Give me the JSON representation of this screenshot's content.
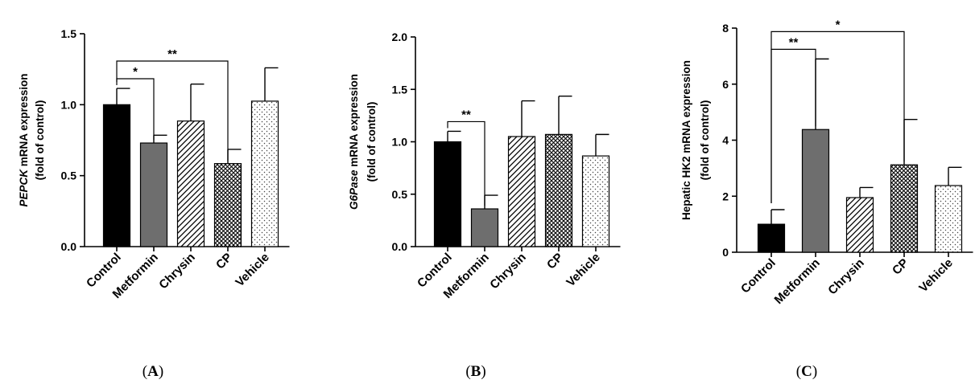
{
  "chart_data": [
    {
      "type": "bar",
      "panel_label": "(A)",
      "ylabel_parts": [
        {
          "text": "PEPCK",
          "italic": true
        },
        {
          "text": " mRNA expression",
          "italic": false
        }
      ],
      "ylabel_line2": "(fold of control)",
      "categories": [
        "Control",
        "Metformin",
        "Chrysin",
        "CP",
        "Vehicle"
      ],
      "values": [
        1.0,
        0.73,
        0.885,
        0.585,
        1.025
      ],
      "errors": [
        0.115,
        0.055,
        0.26,
        0.1,
        0.235
      ],
      "patterns": [
        "solid-black",
        "solid-gray",
        "diagonal",
        "crosshatch",
        "dots"
      ],
      "ylim": [
        0,
        1.5
      ],
      "yticks": [
        "0.0",
        "0.5",
        "1.0",
        "1.5"
      ],
      "significance": [
        {
          "from": 0,
          "to": 1,
          "label": "*"
        },
        {
          "from": 0,
          "to": 3,
          "label": "**"
        }
      ]
    },
    {
      "type": "bar",
      "panel_label": "(B)",
      "ylabel_parts": [
        {
          "text": "G6Pase",
          "italic": true
        },
        {
          "text": " mRNA expression",
          "italic": false
        }
      ],
      "ylabel_line2": "(fold of control)",
      "categories": [
        "Control",
        "Metformin",
        "Chrysin",
        "CP",
        "Vehicle"
      ],
      "values": [
        1.0,
        0.36,
        1.05,
        1.07,
        0.865
      ],
      "errors": [
        0.1,
        0.13,
        0.34,
        0.365,
        0.205
      ],
      "patterns": [
        "solid-black",
        "solid-gray",
        "diagonal",
        "crosshatch",
        "dots"
      ],
      "ylim": [
        0,
        2.0
      ],
      "yticks": [
        "0.0",
        "0.5",
        "1.0",
        "1.5",
        "2.0"
      ],
      "significance": [
        {
          "from": 0,
          "to": 1,
          "label": "**"
        }
      ]
    },
    {
      "type": "bar",
      "panel_label": "(C)",
      "ylabel_parts": [
        {
          "text": "Hepatic HK2 mRNA expression",
          "italic": false
        }
      ],
      "ylabel_line2": "(fold of control)",
      "categories": [
        "Control",
        "Metformin",
        "Chrysin",
        "CP",
        "Vehicle"
      ],
      "values": [
        1.0,
        4.38,
        1.95,
        3.12,
        2.38
      ],
      "errors": [
        0.52,
        2.52,
        0.36,
        1.62,
        0.65
      ],
      "patterns": [
        "solid-black",
        "solid-gray",
        "diagonal",
        "crosshatch",
        "dots"
      ],
      "ylim": [
        0,
        8
      ],
      "yticks": [
        "0",
        "2",
        "4",
        "6",
        "8"
      ],
      "significance": [
        {
          "from": 0,
          "to": 1,
          "label": "**"
        },
        {
          "from": 0,
          "to": 3,
          "label": "*"
        }
      ]
    }
  ]
}
